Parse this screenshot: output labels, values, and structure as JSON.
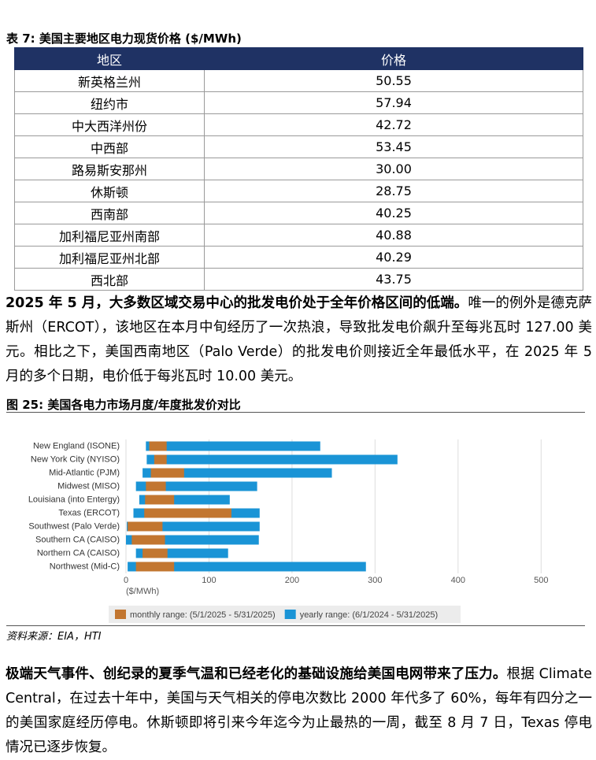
{
  "table": {
    "title": "表 7:  美国主要地区电力现货价格 ($/MWh)",
    "headers": [
      "地区",
      "价格"
    ],
    "rows": [
      [
        "新英格兰州",
        "50.55"
      ],
      [
        "纽约市",
        "57.94"
      ],
      [
        "中大西洋州份",
        "42.72"
      ],
      [
        "中西部",
        "53.45"
      ],
      [
        "路易斯安那州",
        "30.00"
      ],
      [
        "休斯顿",
        "28.75"
      ],
      [
        "西南部",
        "40.25"
      ],
      [
        "加利福尼亚州南部",
        "40.88"
      ],
      [
        "加利福尼亚州北部",
        "40.29"
      ],
      [
        "西北部",
        "43.75"
      ]
    ]
  },
  "paragraphs": [
    {
      "bold": "2025 年 5 月，大多数区域交易中心的批发电价处于全年价格区间的低端。",
      "text": "唯一的例外是德克萨斯州（ERCOT），该地区在本月中旬经历了一次热浪，导致批发电价飙升至每兆瓦时 127.00 美元。相比之下，美国西南地区（Palo Verde）的批发电价则接近全年最低水平，在 2025 年 5 月的多个日期，电价低于每兆瓦时 10.00 美元。"
    },
    {
      "bold": "极端天气事件、创纪录的夏季气温和已经老化的基础设施给美国电网带来了压力。",
      "text": "根据 Climate Central，在过去十年中，美国与天气相关的停电次数比 2000 年代多了 60%，每年有四分之一的美国家庭经历停电。休斯顿即将引来今年迄今为止最热的一周，截至 8 月 7 日，Texas 停电情况已逐步恢复。"
    }
  ],
  "figure": {
    "title": "图 25:  美国各电力市场月度/年度批发价对比",
    "source": "资料来源：EIA，HTI"
  },
  "chart_data": {
    "type": "range-bar",
    "x_label": "($/MWh)",
    "categories": [
      "New England (ISONE)",
      "New York City (NYISO)",
      "Mid-Atlantic (PJM)",
      "Midwest (MISO)",
      "Louisiana (into Entergy)",
      "Texas (ERCOT)",
      "Southwest (Palo Verde)",
      "Southern CA (CAISO)",
      "Northern CA (CAISO)",
      "Northwest (Mid-C)"
    ],
    "series": [
      {
        "name": "yearly range: (6/1/2024 - 5/31/2025)",
        "color": "#1a94d6",
        "low": [
          24,
          25,
          20,
          12,
          16,
          9,
          1,
          0,
          12,
          2
        ],
        "high": [
          234,
          327,
          248,
          158,
          125,
          161,
          161,
          160,
          123,
          289
        ]
      },
      {
        "name": "monthly range: (5/1/2025 - 5/31/2025)",
        "color": "#c27630",
        "low": [
          28,
          34,
          30,
          24,
          23,
          22,
          2,
          7,
          20,
          12
        ],
        "high": [
          49,
          49,
          70,
          48,
          58,
          127,
          44,
          47,
          50,
          58
        ]
      }
    ],
    "xlim": [
      0,
      550
    ],
    "xticks": [
      0,
      100,
      200,
      300,
      400,
      500
    ],
    "grid": true
  }
}
